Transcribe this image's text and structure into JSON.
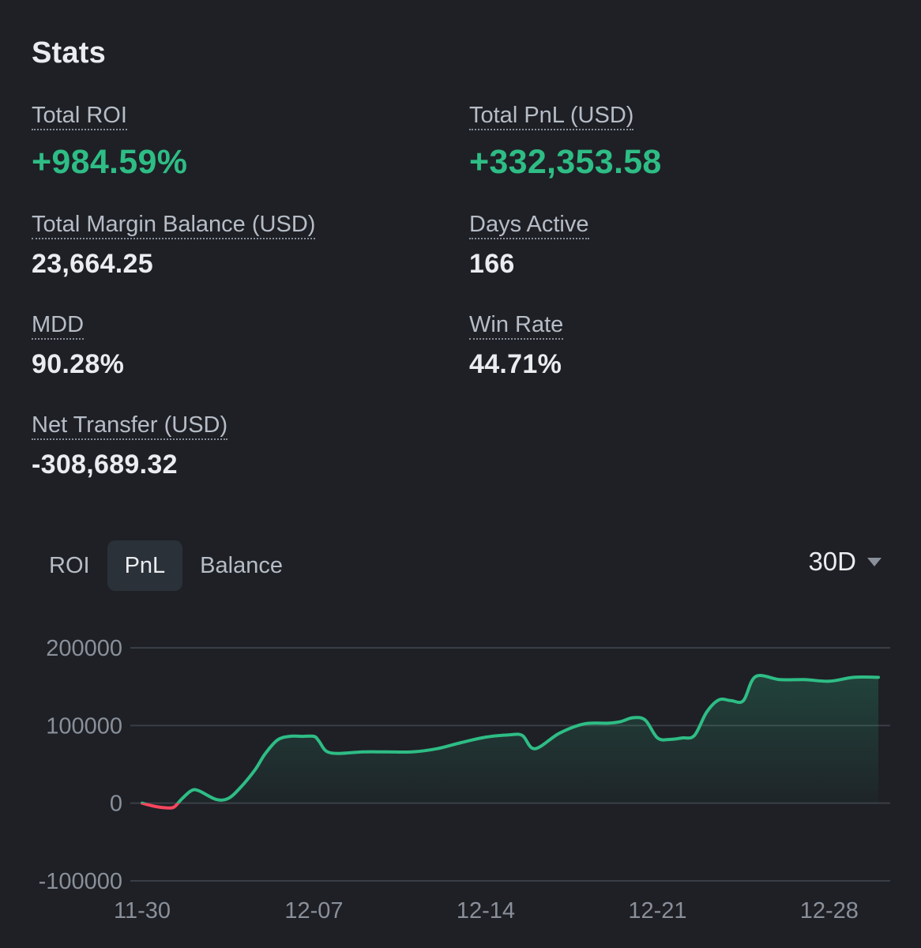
{
  "title": "Stats",
  "stats": {
    "total_roi": {
      "label": "Total ROI",
      "value": "+984.59%"
    },
    "total_pnl": {
      "label": "Total PnL (USD)",
      "value": "+332,353.58"
    },
    "margin_balance": {
      "label": "Total Margin Balance (USD)",
      "value": "23,664.25"
    },
    "days_active": {
      "label": "Days Active",
      "value": "166"
    },
    "mdd": {
      "label": "MDD",
      "value": "90.28%"
    },
    "win_rate": {
      "label": "Win Rate",
      "value": "44.71%"
    },
    "net_transfer": {
      "label": "Net Transfer (USD)",
      "value": "-308,689.32"
    }
  },
  "tabs": [
    {
      "label": "ROI",
      "active": false
    },
    {
      "label": "PnL",
      "active": true
    },
    {
      "label": "Balance",
      "active": false
    }
  ],
  "range": {
    "label": "30D"
  },
  "colors": {
    "positive": "#2ebd85",
    "negative": "#f6465d",
    "background": "#1e2026"
  },
  "chart_data": {
    "type": "area",
    "ylim": [
      -100000,
      200000
    ],
    "yticks": [
      {
        "value": 200000,
        "label": "200000"
      },
      {
        "value": 100000,
        "label": "100000"
      },
      {
        "value": 0,
        "label": "0"
      },
      {
        "value": -100000,
        "label": "-100000"
      }
    ],
    "xticks": [
      {
        "value": 0,
        "label": "11-30"
      },
      {
        "value": 7,
        "label": "12-07"
      },
      {
        "value": 14,
        "label": "12-14"
      },
      {
        "value": 21,
        "label": "12-21"
      },
      {
        "value": 28,
        "label": "12-28"
      }
    ],
    "xlim": [
      0,
      30
    ],
    "grid": true,
    "series": [
      {
        "x": [
          0,
          0.5,
          1,
          1.3,
          1.6,
          2,
          2.3,
          3,
          3.5,
          4,
          4.6,
          5,
          5.5,
          6,
          6.5,
          7,
          7.2,
          7.5,
          8,
          9,
          10,
          11,
          12,
          13,
          14,
          15,
          15.5,
          16,
          17,
          18,
          19,
          19.5,
          20,
          20.5,
          21,
          21.5,
          22,
          22.5,
          23,
          23.5,
          24,
          24.5,
          25,
          26,
          27,
          28,
          29,
          30
        ],
        "y": [
          0,
          -4000,
          -6000,
          -5000,
          5000,
          16000,
          16000,
          5000,
          6000,
          20000,
          43000,
          63000,
          81000,
          86000,
          86000,
          86000,
          80000,
          67000,
          64000,
          66000,
          66000,
          66000,
          70000,
          78000,
          85000,
          88000,
          87000,
          70000,
          90000,
          102000,
          103000,
          105000,
          110000,
          107000,
          84000,
          82000,
          84000,
          87000,
          117000,
          133000,
          132000,
          132000,
          163000,
          159000,
          159000,
          157000,
          162000,
          162000
        ]
      }
    ]
  }
}
